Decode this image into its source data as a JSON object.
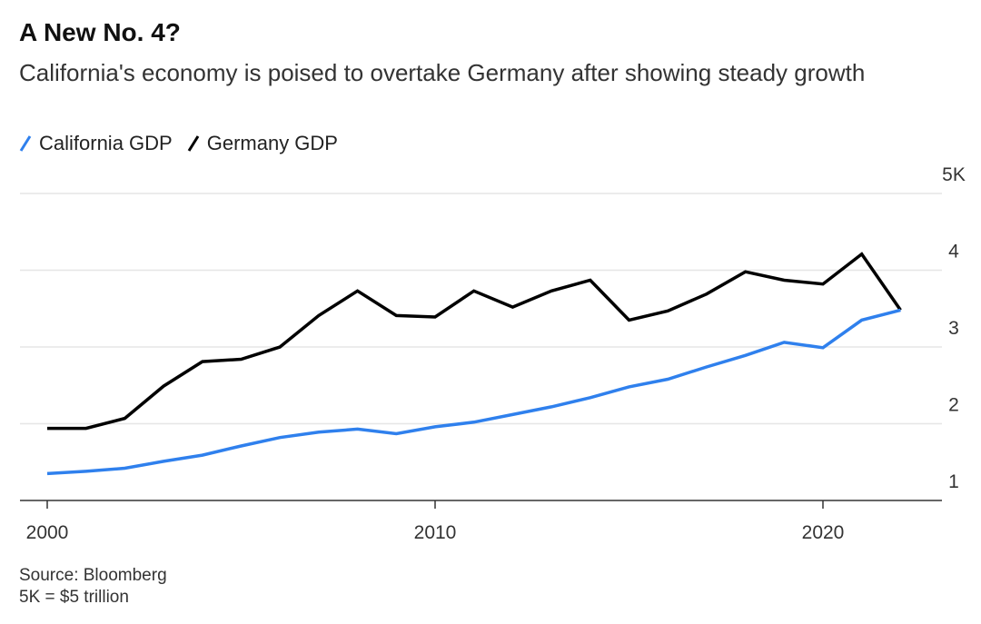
{
  "chart_data": {
    "type": "line",
    "title": "A New No. 4?",
    "subtitle": "California's economy is poised to overtake Germany after showing steady growth",
    "x": [
      2000,
      2001,
      2002,
      2003,
      2004,
      2005,
      2006,
      2007,
      2008,
      2009,
      2010,
      2011,
      2012,
      2013,
      2014,
      2015,
      2016,
      2017,
      2018,
      2019,
      2020,
      2021,
      2022
    ],
    "series": [
      {
        "name": "California GDP",
        "color": "#2f80ed",
        "values": [
          1.35,
          1.38,
          1.42,
          1.51,
          1.59,
          1.71,
          1.82,
          1.89,
          1.93,
          1.87,
          1.96,
          2.02,
          2.12,
          2.22,
          2.34,
          2.48,
          2.58,
          2.74,
          2.89,
          3.06,
          2.99,
          3.35,
          3.48
        ]
      },
      {
        "name": "Germany GDP",
        "color": "#000000",
        "values": [
          1.94,
          1.94,
          2.07,
          2.49,
          2.81,
          2.84,
          3.0,
          3.41,
          3.73,
          3.41,
          3.39,
          3.73,
          3.52,
          3.73,
          3.87,
          3.35,
          3.47,
          3.69,
          3.98,
          3.87,
          3.82,
          4.21,
          3.48
        ]
      }
    ],
    "xticks": [
      {
        "value": 2000,
        "label": "2000"
      },
      {
        "value": 2010,
        "label": "2010"
      },
      {
        "value": 2020,
        "label": "2020"
      }
    ],
    "yticks": [
      {
        "value": 1,
        "label": "1"
      },
      {
        "value": 2,
        "label": "2"
      },
      {
        "value": 3,
        "label": "3"
      },
      {
        "value": 4,
        "label": "4"
      },
      {
        "value": 5,
        "label": "5K"
      }
    ],
    "ylim": [
      1,
      5
    ],
    "xlim": [
      2000,
      2023.5
    ],
    "grid": true,
    "legend_position": "top-left",
    "y_axis_side": "right",
    "xlabel": "",
    "ylabel": ""
  },
  "footer": {
    "source": "Source: Bloomberg",
    "note": "5K = $5 trillion"
  }
}
